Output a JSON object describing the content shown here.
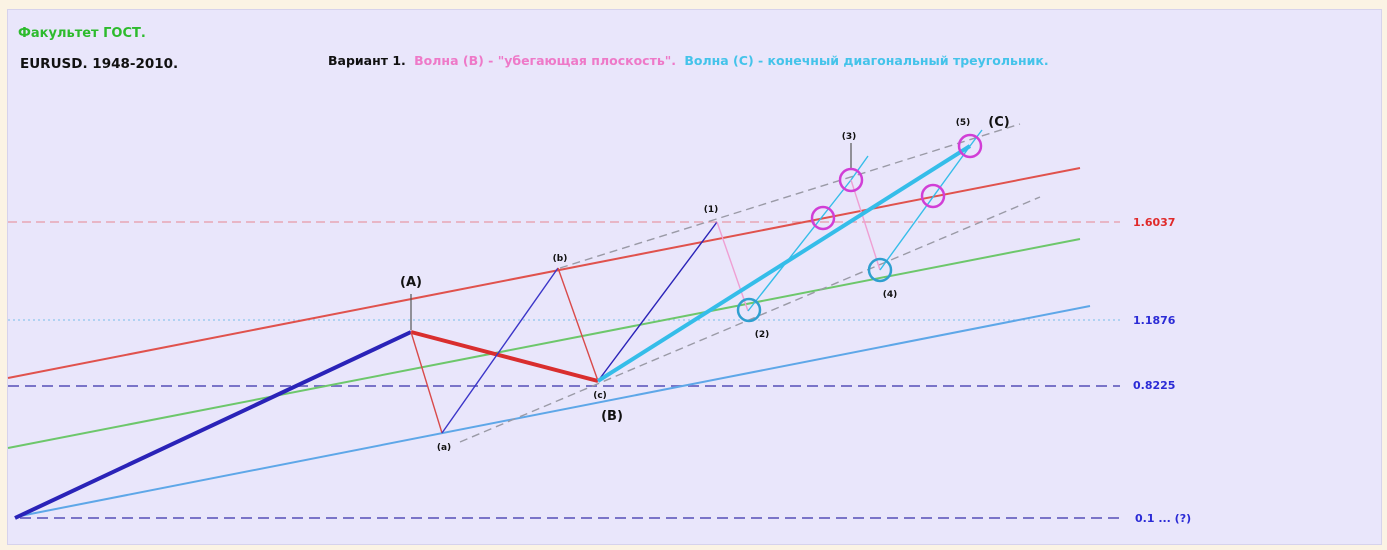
{
  "header": {
    "faculty": "Факультет ГОСТ.",
    "instrument": "EURUSD. 1948-2010.",
    "variant": "Вариант 1.",
    "wave_b_desc": "Волна (B) - \"убегающая плоскость\".",
    "wave_c_desc": "Волна (C) - конечный диагональный треугольник."
  },
  "colors": {
    "faculty": "#2dbb2d",
    "wave_b_text": "#ee79c8",
    "wave_c_text": "#44c3ea",
    "upper_channel": "#e0524d",
    "middle_channel": "#6dc76b",
    "lower_channel": "#5ea7e8",
    "level_main": "#7a74c8",
    "level_16037": "#e89aa6",
    "level_11876": "#8fc7ec",
    "impulse_up": "#2a23b8",
    "correction": "#d92e2e",
    "wave_c": "#35bde9",
    "pink_link": "#ef9fd3",
    "circle_magenta": "#d13ed6",
    "circle_blue": "#2f9fd0",
    "level_label_red": "#e02a2a",
    "level_label_blue": "#2b2bd6"
  },
  "chart_data": {
    "type": "line",
    "title": "EURUSD. 1948-2010.",
    "levels": [
      {
        "label": "1.6037",
        "value": 1.6037
      },
      {
        "label": "1.1876",
        "value": 1.1876
      },
      {
        "label": "0.8225",
        "value": 0.8225
      },
      {
        "label": "0.1 ... (?)",
        "value": 0.1
      }
    ],
    "waves": [
      {
        "label": "(A)"
      },
      {
        "label": "(a)"
      },
      {
        "label": "(b)"
      },
      {
        "label": "(c)"
      },
      {
        "label": "(B)"
      },
      {
        "label": "(1)"
      },
      {
        "label": "(2)"
      },
      {
        "label": "(3)"
      },
      {
        "label": "(4)"
      },
      {
        "label": "(5)"
      },
      {
        "label": "(C)"
      }
    ]
  }
}
